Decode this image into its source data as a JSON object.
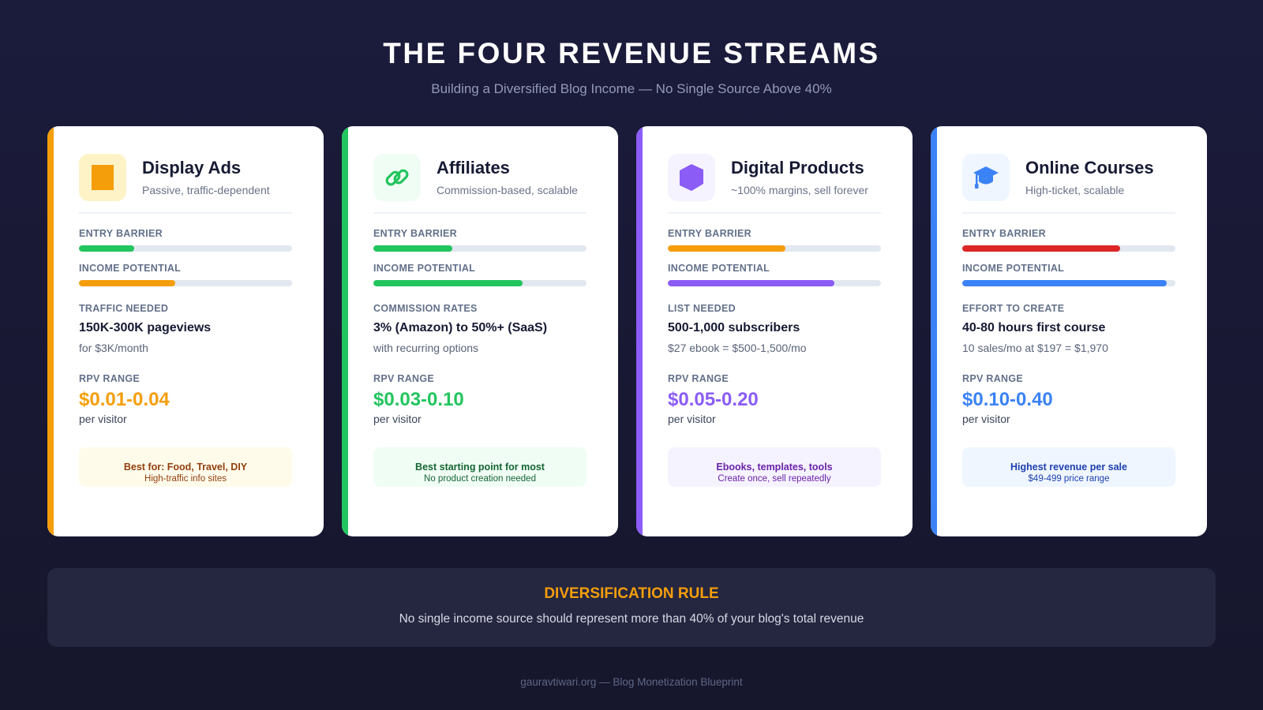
{
  "header": {
    "title": "THE FOUR REVENUE STREAMS",
    "subtitle": "Building a Diversified Blog Income — No Single Source Above 40%"
  },
  "labels": {
    "entry_barrier": "ENTRY BARRIER",
    "income_potential": "INCOME POTENTIAL",
    "rpv_range": "RPV RANGE",
    "per_visitor": "per visitor"
  },
  "cards": [
    {
      "title": "Display Ads",
      "subtitle": "Passive, traffic-dependent",
      "icon": "ad-block-icon",
      "accent": "#f59e0b",
      "icon_bg": "#fef3c7",
      "entry_barrier_pct": 26,
      "entry_barrier_color": "#22c55e",
      "income_potential_pct": 45,
      "income_potential_color": "#f59e0b",
      "section_label": "TRAFFIC NEEDED",
      "section_value": "150K-300K pageviews",
      "section_note": "for $3K/month",
      "rpv": "$0.01-0.04",
      "callout_main": "Best for: Food, Travel, DIY",
      "callout_sub": "High-traffic info sites",
      "callout_bg": "#fffbeb",
      "callout_color": "#92400e"
    },
    {
      "title": "Affiliates",
      "subtitle": "Commission-based, scalable",
      "icon": "link-icon",
      "accent": "#22c55e",
      "icon_bg": "#f0fdf4",
      "entry_barrier_pct": 37,
      "entry_barrier_color": "#22c55e",
      "income_potential_pct": 70,
      "income_potential_color": "#22c55e",
      "section_label": "COMMISSION RATES",
      "section_value": "3% (Amazon) to 50%+ (SaaS)",
      "section_note": "with recurring options",
      "rpv": "$0.03-0.10",
      "callout_main": "Best starting point for most",
      "callout_sub": "No product creation needed",
      "callout_bg": "#f0fdf4",
      "callout_color": "#166534"
    },
    {
      "title": "Digital Products",
      "subtitle": "~100% margins, sell forever",
      "icon": "cube-icon",
      "accent": "#8b5cf6",
      "icon_bg": "#f5f3ff",
      "entry_barrier_pct": 55,
      "entry_barrier_color": "#f59e0b",
      "income_potential_pct": 78,
      "income_potential_color": "#8b5cf6",
      "section_label": "LIST NEEDED",
      "section_value": "500-1,000 subscribers",
      "section_note": "$27 ebook = $500-1,500/mo",
      "rpv": "$0.05-0.20",
      "callout_main": "Ebooks, templates, tools",
      "callout_sub": "Create once, sell repeatedly",
      "callout_bg": "#f5f3ff",
      "callout_color": "#6b21a8"
    },
    {
      "title": "Online Courses",
      "subtitle": "High-ticket, scalable",
      "icon": "graduation-cap-icon",
      "accent": "#3b82f6",
      "icon_bg": "#eff6ff",
      "entry_barrier_pct": 74,
      "entry_barrier_color": "#dc2626",
      "income_potential_pct": 96,
      "income_potential_color": "#3b82f6",
      "section_label": "EFFORT TO CREATE",
      "section_value": "40-80 hours first course",
      "section_note": "10 sales/mo at $197 = $1,970",
      "rpv": "$0.10-0.40",
      "callout_main": "Highest revenue per sale",
      "callout_sub": "$49-499 price range",
      "callout_bg": "#eff6ff",
      "callout_color": "#1e40af"
    }
  ],
  "rule": {
    "title": "DIVERSIFICATION RULE",
    "text": "No single income source should represent more than 40% of your blog's total revenue"
  },
  "footer": {
    "text": "gauravtiwari.org — Blog Monetization Blueprint"
  }
}
